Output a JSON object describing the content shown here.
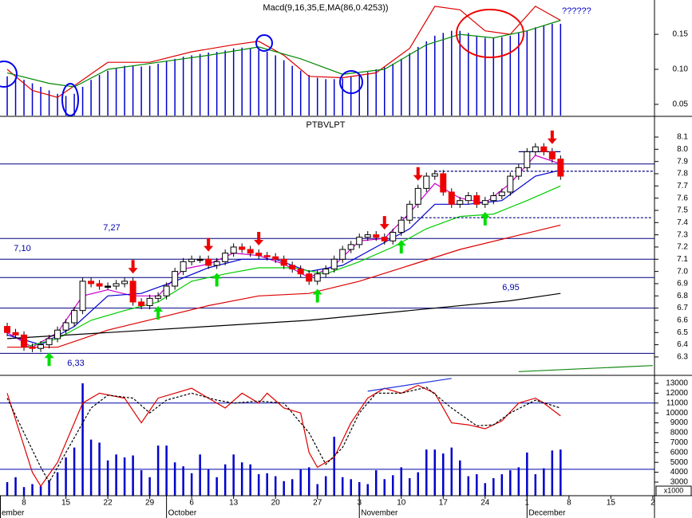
{
  "chart_data": [
    {
      "type": "oscillator",
      "title": "Macd(9,16,35,E,MA(86,0.4253))",
      "annotation": "??????",
      "xlim": [
        -0.86,
        77.2
      ],
      "ylim": [
        0.034,
        0.199
      ],
      "yticks": [
        0.05,
        {
          "value": 0.1,
          "label": "0.10"
        },
        0.15
      ],
      "color": "#0000cc",
      "values": [
        0.09,
        0.088,
        0.085,
        0.08,
        0.075,
        0.07,
        0.065,
        0.062,
        0.065,
        0.075,
        0.085,
        0.092,
        0.098,
        0.102,
        0.105,
        0.105,
        0.104,
        0.105,
        0.108,
        0.112,
        0.115,
        0.118,
        0.12,
        0.122,
        0.124,
        0.125,
        0.127,
        0.13,
        0.131,
        0.13,
        0.128,
        0.125,
        0.12,
        0.113,
        0.105,
        0.098,
        0.092,
        0.088,
        0.086,
        0.086,
        0.087,
        0.089,
        0.092,
        0.096,
        0.1,
        0.103,
        0.108,
        0.115,
        0.123,
        0.132,
        0.14,
        0.148,
        0.152,
        0.155,
        0.155,
        0.152,
        0.148,
        0.145,
        0.145,
        0.146,
        0.148,
        0.152,
        0.155,
        0.16,
        0.163,
        0.165,
        0.165
      ],
      "series": [
        {
          "color": "#dd0000",
          "x": [
            0,
            3,
            6,
            9,
            12,
            17,
            22,
            27,
            30,
            33,
            36,
            40,
            44,
            48,
            51,
            54,
            57,
            60,
            63,
            66
          ],
          "values": [
            0.1,
            0.07,
            0.06,
            0.085,
            0.11,
            0.11,
            0.125,
            0.135,
            0.14,
            0.12,
            0.09,
            0.088,
            0.095,
            0.13,
            0.19,
            0.185,
            0.155,
            0.15,
            0.19,
            0.17
          ]
        },
        {
          "color": "#008800",
          "x": [
            0,
            5,
            8,
            12,
            18,
            24,
            30,
            35,
            40,
            45,
            50,
            54,
            58,
            62,
            66
          ],
          "values": [
            0.095,
            0.08,
            0.075,
            0.1,
            0.11,
            0.12,
            0.132,
            0.115,
            0.093,
            0.1,
            0.135,
            0.15,
            0.145,
            0.155,
            0.17
          ]
        }
      ]
    },
    {
      "type": "candlestick",
      "title": "PTBVLPT",
      "xlim": [
        -0.86,
        77.2
      ],
      "ylim": [
        6.156,
        8.263
      ],
      "yticks": [
        6.3,
        6.4,
        6.5,
        6.6,
        6.7,
        6.8,
        6.9,
        {
          "value": 7,
          "label": "7.0"
        },
        7.1,
        7.2,
        7.3,
        7.4,
        7.5,
        7.6,
        7.7,
        7.8,
        7.9,
        {
          "value": 8,
          "label": "8.0"
        },
        8.1
      ],
      "open": [
        6.55,
        6.5,
        6.48,
        6.38,
        6.37,
        6.4,
        6.45,
        6.52,
        6.58,
        6.68,
        6.92,
        6.9,
        6.88,
        6.88,
        6.9,
        6.92,
        6.75,
        6.72,
        6.78,
        6.8,
        6.88,
        7.0,
        7.08,
        7.1,
        7.1,
        7.05,
        7.08,
        7.15,
        7.2,
        7.18,
        7.15,
        7.13,
        7.12,
        7.1,
        7.05,
        7.02,
        6.98,
        6.92,
        6.98,
        7.02,
        7.1,
        7.18,
        7.22,
        7.28,
        7.3,
        7.28,
        7.25,
        7.32,
        7.42,
        7.55,
        7.68,
        7.78,
        7.8,
        7.65,
        7.55,
        7.58,
        7.62,
        7.55,
        7.58,
        7.62,
        7.65,
        7.78,
        7.85,
        7.98,
        8.02,
        7.98,
        7.92
      ],
      "high": [
        6.58,
        6.53,
        6.51,
        6.41,
        6.43,
        6.48,
        6.55,
        6.61,
        6.71,
        6.95,
        6.95,
        6.93,
        6.91,
        6.93,
        6.95,
        6.95,
        6.78,
        6.81,
        6.83,
        6.91,
        7.03,
        7.11,
        7.13,
        7.13,
        7.13,
        7.11,
        7.18,
        7.23,
        7.23,
        7.21,
        7.18,
        7.16,
        7.15,
        7.13,
        7.08,
        7.05,
        7.01,
        7.01,
        7.05,
        7.13,
        7.21,
        7.25,
        7.31,
        7.33,
        7.33,
        7.31,
        7.35,
        7.45,
        7.58,
        7.71,
        7.81,
        7.83,
        7.83,
        7.68,
        7.61,
        7.65,
        7.65,
        7.61,
        7.65,
        7.68,
        7.81,
        7.88,
        8.01,
        8.05,
        8.05,
        8.01,
        7.95
      ],
      "low": [
        6.47,
        6.45,
        6.35,
        6.34,
        6.34,
        6.37,
        6.42,
        6.49,
        6.55,
        6.65,
        6.87,
        6.85,
        6.85,
        6.85,
        6.87,
        6.72,
        6.69,
        6.69,
        6.75,
        6.77,
        6.85,
        6.97,
        7.05,
        7.07,
        7.02,
        7.02,
        7.05,
        7.12,
        7.15,
        7.12,
        7.1,
        7.09,
        7.07,
        7.02,
        6.99,
        6.95,
        6.89,
        6.89,
        6.95,
        6.99,
        7.07,
        7.15,
        7.19,
        7.25,
        7.25,
        7.22,
        7.22,
        7.29,
        7.39,
        7.52,
        7.65,
        7.75,
        7.62,
        7.52,
        7.52,
        7.55,
        7.52,
        7.52,
        7.55,
        7.59,
        7.62,
        7.75,
        7.82,
        7.95,
        7.95,
        7.89,
        7.75
      ],
      "close": [
        6.5,
        6.48,
        6.38,
        6.37,
        6.4,
        6.45,
        6.52,
        6.58,
        6.68,
        6.92,
        6.9,
        6.88,
        6.88,
        6.9,
        6.92,
        6.75,
        6.72,
        6.78,
        6.8,
        6.88,
        7.0,
        7.08,
        7.1,
        7.1,
        7.05,
        7.08,
        7.15,
        7.2,
        7.18,
        7.15,
        7.13,
        7.12,
        7.1,
        7.05,
        7.02,
        6.98,
        6.92,
        6.98,
        7.02,
        7.1,
        7.18,
        7.22,
        7.28,
        7.3,
        7.28,
        7.25,
        7.32,
        7.42,
        7.55,
        7.68,
        7.78,
        7.8,
        7.65,
        7.55,
        7.58,
        7.62,
        7.55,
        7.58,
        7.62,
        7.65,
        7.78,
        7.85,
        7.98,
        8.02,
        7.98,
        7.92,
        7.78
      ],
      "up_color": "#ffffff",
      "down_color": "#ee0000",
      "series": [
        {
          "color": "#cc00cc",
          "x": [
            0,
            3,
            6,
            9,
            12,
            15,
            18,
            21,
            24,
            27,
            30,
            33,
            36,
            39,
            42,
            45,
            48,
            51,
            54,
            57,
            60,
            63,
            66
          ],
          "values": [
            6.5,
            6.38,
            6.5,
            6.8,
            6.85,
            6.8,
            6.8,
            7.02,
            7.06,
            7.15,
            7.13,
            7.06,
            6.95,
            7.05,
            7.25,
            7.27,
            7.48,
            7.72,
            7.6,
            7.56,
            7.72,
            7.95,
            7.88
          ]
        },
        {
          "color": "#0000cc",
          "x": [
            0,
            4,
            8,
            12,
            16,
            20,
            24,
            28,
            32,
            36,
            40,
            44,
            48,
            51,
            55,
            59,
            63,
            66
          ],
          "values": [
            6.48,
            6.4,
            6.55,
            6.8,
            6.82,
            6.92,
            7.03,
            7.1,
            7.1,
            7.0,
            7.05,
            7.2,
            7.35,
            7.55,
            7.55,
            7.58,
            7.78,
            7.83
          ]
        },
        {
          "color": "#00cc00",
          "x": [
            2,
            6,
            10,
            14,
            18,
            22,
            26,
            30,
            34,
            38,
            42,
            46,
            50,
            54,
            58,
            62,
            66
          ],
          "values": [
            6.38,
            6.45,
            6.6,
            6.68,
            6.75,
            6.92,
            6.98,
            7.03,
            7.03,
            6.98,
            7.08,
            7.2,
            7.35,
            7.45,
            7.47,
            7.58,
            7.7
          ]
        },
        {
          "color": "#dd0000",
          "x": [
            0,
            6,
            12,
            18,
            24,
            30,
            36,
            42,
            48,
            54,
            60,
            66
          ],
          "values": [
            6.38,
            6.38,
            6.52,
            6.62,
            6.72,
            6.8,
            6.82,
            6.92,
            7.05,
            7.18,
            7.28,
            7.38
          ]
        },
        {
          "color": "#000000",
          "x": [
            0,
            12,
            24,
            36,
            48,
            60,
            66
          ],
          "values": [
            6.45,
            6.5,
            6.55,
            6.6,
            6.68,
            6.76,
            6.82
          ]
        }
      ],
      "levels": [
        7.88,
        {
          "value": 7.27,
          "label": "7,27"
        },
        {
          "value": 7.1,
          "label": "7,10"
        },
        {
          "value": 6.95,
          "label": "6,95"
        },
        6.7,
        {
          "value": 6.33,
          "label": "6,33"
        }
      ],
      "level_color": "#000080",
      "segments": [
        {
          "color": "#000080",
          "dashed": true,
          "x": [
            51,
            77
          ],
          "values": [
            7.82,
            7.82
          ]
        },
        {
          "color": "#000080",
          "dashed": true,
          "x": [
            47,
            77
          ],
          "values": [
            7.44,
            7.44
          ]
        },
        {
          "color": "#000080",
          "dashed": false,
          "x": [
            61,
            66
          ],
          "values": [
            7.98,
            7.98
          ]
        },
        {
          "color": "#118811",
          "dashed": false,
          "x": [
            61,
            77
          ],
          "values": [
            6.18,
            6.23
          ]
        }
      ],
      "sell": [
        15,
        24,
        30,
        45,
        49,
        65
      ],
      "buy": [
        5,
        18,
        25,
        37,
        47,
        57
      ],
      "sell_color": "#ee0000",
      "buy_color": "#00dd00"
    },
    {
      "type": "volume",
      "multiplier": "x1000",
      "xlim": [
        -0.86,
        77.2
      ],
      "ylim": [
        1629,
        13726
      ],
      "yticks": [
        3000,
        4000,
        5000,
        6000,
        7000,
        8000,
        9000,
        10000,
        11000,
        12000,
        13000
      ],
      "color": "#0000cc",
      "values": [
        3000,
        3500,
        2500,
        2800,
        2600,
        3200,
        4000,
        5500,
        6500,
        13000,
        7300,
        7000,
        5200,
        5800,
        5500,
        5700,
        4200,
        3500,
        6700,
        6700,
        5000,
        4600,
        3900,
        5800,
        4300,
        3500,
        4800,
        5800,
        5000,
        4800,
        3800,
        3900,
        3600,
        3100,
        3300,
        4300,
        4500,
        2800,
        3600,
        7600,
        3500,
        3300,
        3000,
        2800,
        4200,
        3300,
        3700,
        4500,
        3400,
        4000,
        6300,
        6300,
        5900,
        6500,
        5200,
        3600,
        3800,
        2900,
        3400,
        3800,
        4200,
        4500,
        6000,
        3800,
        4400,
        6200,
        6300
      ],
      "series": [
        {
          "color": "#dd0000",
          "dashed": false,
          "x": [
            0,
            3,
            4,
            6,
            9,
            11,
            14,
            16,
            18,
            20,
            22,
            24,
            26,
            28,
            30,
            31,
            33,
            35,
            36,
            37,
            39,
            41,
            43,
            45,
            47,
            49,
            51,
            53,
            55,
            57,
            59,
            61,
            63,
            64,
            66
          ],
          "values": [
            12000,
            4000,
            2600,
            5000,
            11000,
            12000,
            11500,
            9000,
            11500,
            12000,
            12500,
            11500,
            10500,
            12000,
            11000,
            12000,
            10500,
            10000,
            6000,
            4500,
            5500,
            9000,
            11500,
            12500,
            12000,
            12800,
            12000,
            9000,
            8800,
            8400,
            9200,
            11000,
            11500,
            11000,
            9700
          ]
        },
        {
          "color": "#000000",
          "dashed": true,
          "x": [
            0,
            4,
            5,
            7,
            10,
            12,
            15,
            17,
            19,
            22,
            25,
            27,
            30,
            33,
            36,
            38,
            40,
            42,
            44,
            47,
            50,
            53,
            56,
            58,
            60,
            63,
            66
          ],
          "values": [
            11500,
            4500,
            3000,
            6000,
            10500,
            11800,
            11500,
            10000,
            11300,
            12000,
            11300,
            11000,
            11200,
            11000,
            8000,
            4800,
            6500,
            10000,
            12000,
            12000,
            12600,
            10500,
            8700,
            8800,
            10000,
            11300,
            10500
          ]
        },
        {
          "color": "#2233dd",
          "dashed": false,
          "x": [
            43,
            53
          ],
          "values": [
            12200,
            13500
          ]
        }
      ],
      "levels": [
        11000,
        4300
      ],
      "level_color": "#0000aa",
      "xticks": [
        {
          "value": 2,
          "label": "8"
        },
        {
          "value": 7,
          "label": "15"
        },
        {
          "value": 12,
          "label": "22"
        },
        {
          "value": 17,
          "label": "29"
        },
        {
          "value": 22,
          "label": "6"
        },
        {
          "value": 27,
          "label": "13"
        },
        {
          "value": 32,
          "label": "20"
        },
        {
          "value": 37,
          "label": "27"
        },
        {
          "value": 42,
          "label": "3"
        },
        {
          "value": 47,
          "label": "10"
        },
        {
          "value": 52,
          "label": "17"
        },
        {
          "value": 57,
          "label": "24"
        },
        {
          "value": 62,
          "label": "1"
        },
        {
          "value": 67,
          "label": "8"
        },
        {
          "value": 72,
          "label": "15"
        },
        {
          "value": 77,
          "label": "2"
        }
      ],
      "xmonths": [
        {
          "value": -3,
          "label": "ember"
        },
        {
          "value": 19,
          "label": "October"
        },
        {
          "value": 42,
          "label": "November"
        },
        {
          "value": 62,
          "label": "December"
        }
      ]
    }
  ]
}
